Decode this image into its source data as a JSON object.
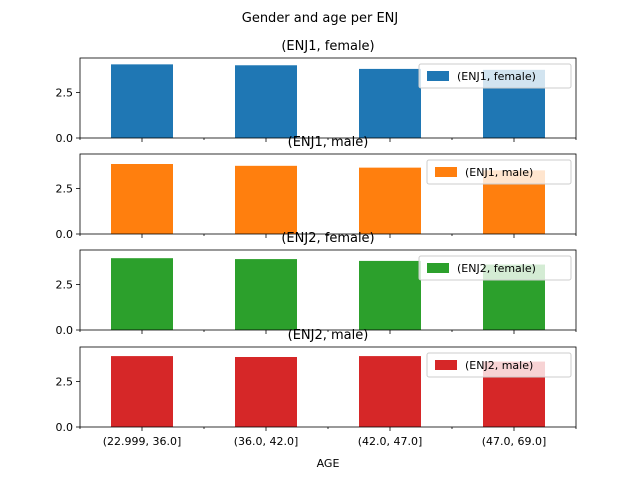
{
  "chart_data": {
    "type": "bar",
    "title": "Gender and age per ENJ",
    "xlabel": "AGE",
    "categories": [
      "(22.999, 36.0]",
      "(36.0, 42.0]",
      "(42.0, 47.0]",
      "(47.0, 69.0]"
    ],
    "ylim": [
      0,
      4.4
    ],
    "yticks": [
      "0.0",
      "2.5"
    ],
    "legend_position": "upper-right",
    "series": [
      {
        "name": "(ENJ1, female)",
        "color": "#1f77b4",
        "values": [
          4.05,
          4.0,
          3.8,
          3.75
        ]
      },
      {
        "name": "(ENJ1, male)",
        "color": "#ff7f0e",
        "values": [
          3.85,
          3.75,
          3.65,
          3.5
        ]
      },
      {
        "name": "(ENJ2, female)",
        "color": "#2ca02c",
        "values": [
          3.95,
          3.9,
          3.8,
          3.6
        ]
      },
      {
        "name": "(ENJ2, male)",
        "color": "#d62728",
        "values": [
          3.9,
          3.85,
          3.9,
          3.6
        ]
      }
    ]
  }
}
